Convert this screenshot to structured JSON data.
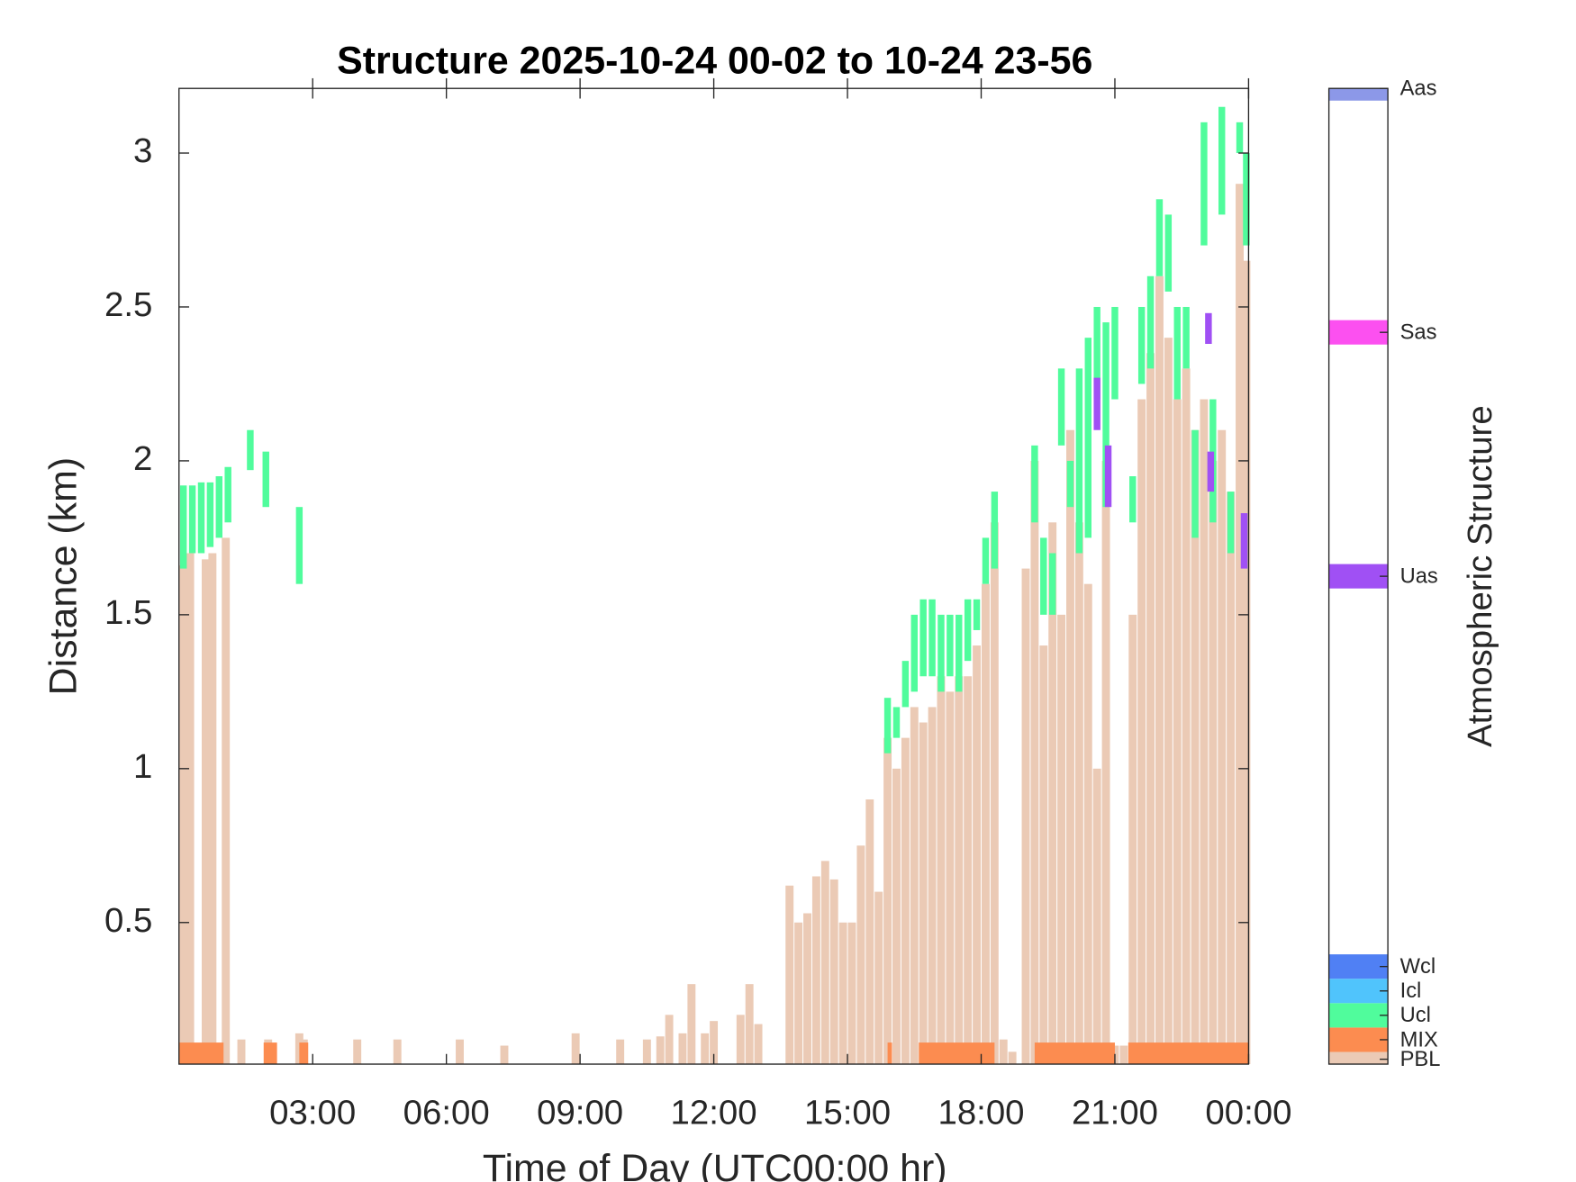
{
  "chart_data": {
    "type": "bar",
    "title": "Structure 2025-10-24 00-02 to 10-24 23-56",
    "xlabel": "Time of Day (UTC00:00 hr)",
    "ylabel": "Distance (km)",
    "xlim": [
      0,
      24
    ],
    "xticks": [
      {
        "value": 3,
        "label": "03:00"
      },
      {
        "value": 6,
        "label": "06:00"
      },
      {
        "value": 9,
        "label": "09:00"
      },
      {
        "value": 12,
        "label": "12:00"
      },
      {
        "value": 15,
        "label": "15:00"
      },
      {
        "value": 18,
        "label": "18:00"
      },
      {
        "value": 21,
        "label": "21:00"
      },
      {
        "value": 24,
        "label": "00:00"
      }
    ],
    "ylim": [
      0.04,
      3.21
    ],
    "yticks": [
      0.5,
      1,
      1.5,
      2,
      2.5,
      3
    ],
    "series": [
      {
        "name": "PBL",
        "x": [
          0.1,
          0.25,
          0.45,
          0.6,
          0.75,
          0.95,
          1.05,
          1.4,
          2.0,
          2.7,
          2.8,
          4.0,
          4.9,
          6.3,
          7.3,
          8.9,
          9.9,
          10.5,
          10.8,
          11.0,
          11.3,
          11.5,
          11.8,
          12.0,
          12.6,
          12.8,
          13.0,
          13.7,
          13.9,
          14.1,
          14.3,
          14.5,
          14.7,
          14.9,
          15.1,
          15.3,
          15.5,
          15.7,
          15.9,
          16.1,
          16.3,
          16.5,
          16.7,
          16.9,
          17.1,
          17.3,
          17.5,
          17.7,
          17.9,
          18.1,
          18.3,
          18.5,
          18.7,
          19.0,
          19.2,
          19.4,
          19.6,
          19.8,
          20.0,
          20.2,
          20.4,
          20.6,
          20.8,
          21.0,
          21.2,
          21.4,
          21.6,
          21.8,
          22.0,
          22.2,
          22.4,
          22.6,
          22.8,
          23.0,
          23.2,
          23.4,
          23.6,
          23.8,
          23.95
        ],
        "values": [
          1.66,
          1.7,
          0.1,
          1.68,
          1.7,
          0.1,
          1.75,
          0.12,
          0.12,
          0.14,
          0.12,
          0.12,
          0.12,
          0.12,
          0.1,
          0.14,
          0.12,
          0.12,
          0.13,
          0.2,
          0.14,
          0.3,
          0.14,
          0.18,
          0.2,
          0.3,
          0.17,
          0.62,
          0.5,
          0.53,
          0.65,
          0.7,
          0.64,
          0.5,
          0.5,
          0.75,
          0.9,
          0.6,
          1.1,
          1.0,
          1.1,
          1.2,
          1.15,
          1.2,
          1.3,
          1.25,
          1.3,
          1.3,
          1.4,
          1.6,
          1.8,
          0.12,
          0.08,
          1.65,
          2.0,
          1.4,
          1.8,
          1.5,
          2.1,
          1.8,
          1.6,
          1.0,
          2.0,
          0.1,
          0.1,
          1.5,
          2.2,
          2.35,
          2.6,
          2.4,
          2.2,
          2.3,
          2.1,
          2.2,
          2.0,
          2.1,
          1.9,
          2.9,
          2.65
        ]
      },
      {
        "name": "MIX",
        "x_start": [
          0.0,
          1.9,
          2.7,
          15.9,
          16.6,
          19.2,
          21.3
        ],
        "x_end": [
          1.0,
          2.2,
          2.9,
          16.0,
          18.3,
          21.0,
          24.0
        ],
        "values": [
          0.11,
          0.11,
          0.11,
          0.11,
          0.11,
          0.11,
          0.11
        ]
      },
      {
        "name": "Ucl",
        "x": [
          0.1,
          0.3,
          0.5,
          0.7,
          0.9,
          1.1,
          1.6,
          1.95,
          2.7,
          15.9,
          16.1,
          16.3,
          16.5,
          16.7,
          16.9,
          17.1,
          17.3,
          17.5,
          17.7,
          17.9,
          18.1,
          18.3,
          19.2,
          19.4,
          19.6,
          19.8,
          20.0,
          20.2,
          20.4,
          20.6,
          20.8,
          21.0,
          21.4,
          21.6,
          21.8,
          22.0,
          22.2,
          22.4,
          22.6,
          22.8,
          23.0,
          23.2,
          23.4,
          23.6,
          23.8,
          23.95
        ],
        "base": [
          1.65,
          1.7,
          1.7,
          1.72,
          1.75,
          1.8,
          1.97,
          1.85,
          1.6,
          1.05,
          1.1,
          1.2,
          1.25,
          1.3,
          1.3,
          1.25,
          1.3,
          1.25,
          1.35,
          1.45,
          1.6,
          1.65,
          1.8,
          1.5,
          1.5,
          2.05,
          1.85,
          1.7,
          1.75,
          2.2,
          1.85,
          2.2,
          1.8,
          2.25,
          2.3,
          2.6,
          2.55,
          2.2,
          2.3,
          1.75,
          2.7,
          1.8,
          2.8,
          1.7,
          3.0,
          2.7
        ],
        "values": [
          1.92,
          1.92,
          1.93,
          1.93,
          1.95,
          1.98,
          2.1,
          2.03,
          1.85,
          1.23,
          1.2,
          1.35,
          1.5,
          1.55,
          1.55,
          1.5,
          1.5,
          1.5,
          1.55,
          1.55,
          1.75,
          1.9,
          2.05,
          1.75,
          1.7,
          2.3,
          2.0,
          2.3,
          2.4,
          2.5,
          2.45,
          2.5,
          1.95,
          2.5,
          2.6,
          2.85,
          2.8,
          2.5,
          2.5,
          2.1,
          3.1,
          2.2,
          3.15,
          1.9,
          3.1,
          3.0
        ]
      },
      {
        "name": "Uas",
        "x": [
          20.6,
          20.85,
          23.1,
          23.15,
          23.9
        ],
        "base": [
          2.1,
          1.85,
          2.38,
          1.9,
          1.65
        ],
        "values": [
          2.27,
          2.05,
          2.48,
          2.03,
          1.83
        ]
      }
    ],
    "colorbar": {
      "label": "Atmospheric Structure",
      "lim": [
        0,
        40
      ],
      "ticks": [
        0.2,
        1,
        2,
        3,
        4,
        20,
        30,
        40
      ],
      "categories": [
        "PBL",
        "MIX",
        "Ucl",
        "Icl",
        "Wcl",
        "Uas",
        "Sas",
        "Aas"
      ],
      "colors": [
        "#ebcab5",
        "#fc8c50",
        "#50fc9c",
        "#50c4fc",
        "#5080f4",
        "#a050f4",
        "#fc50f0",
        "#8c98e8"
      ]
    }
  }
}
